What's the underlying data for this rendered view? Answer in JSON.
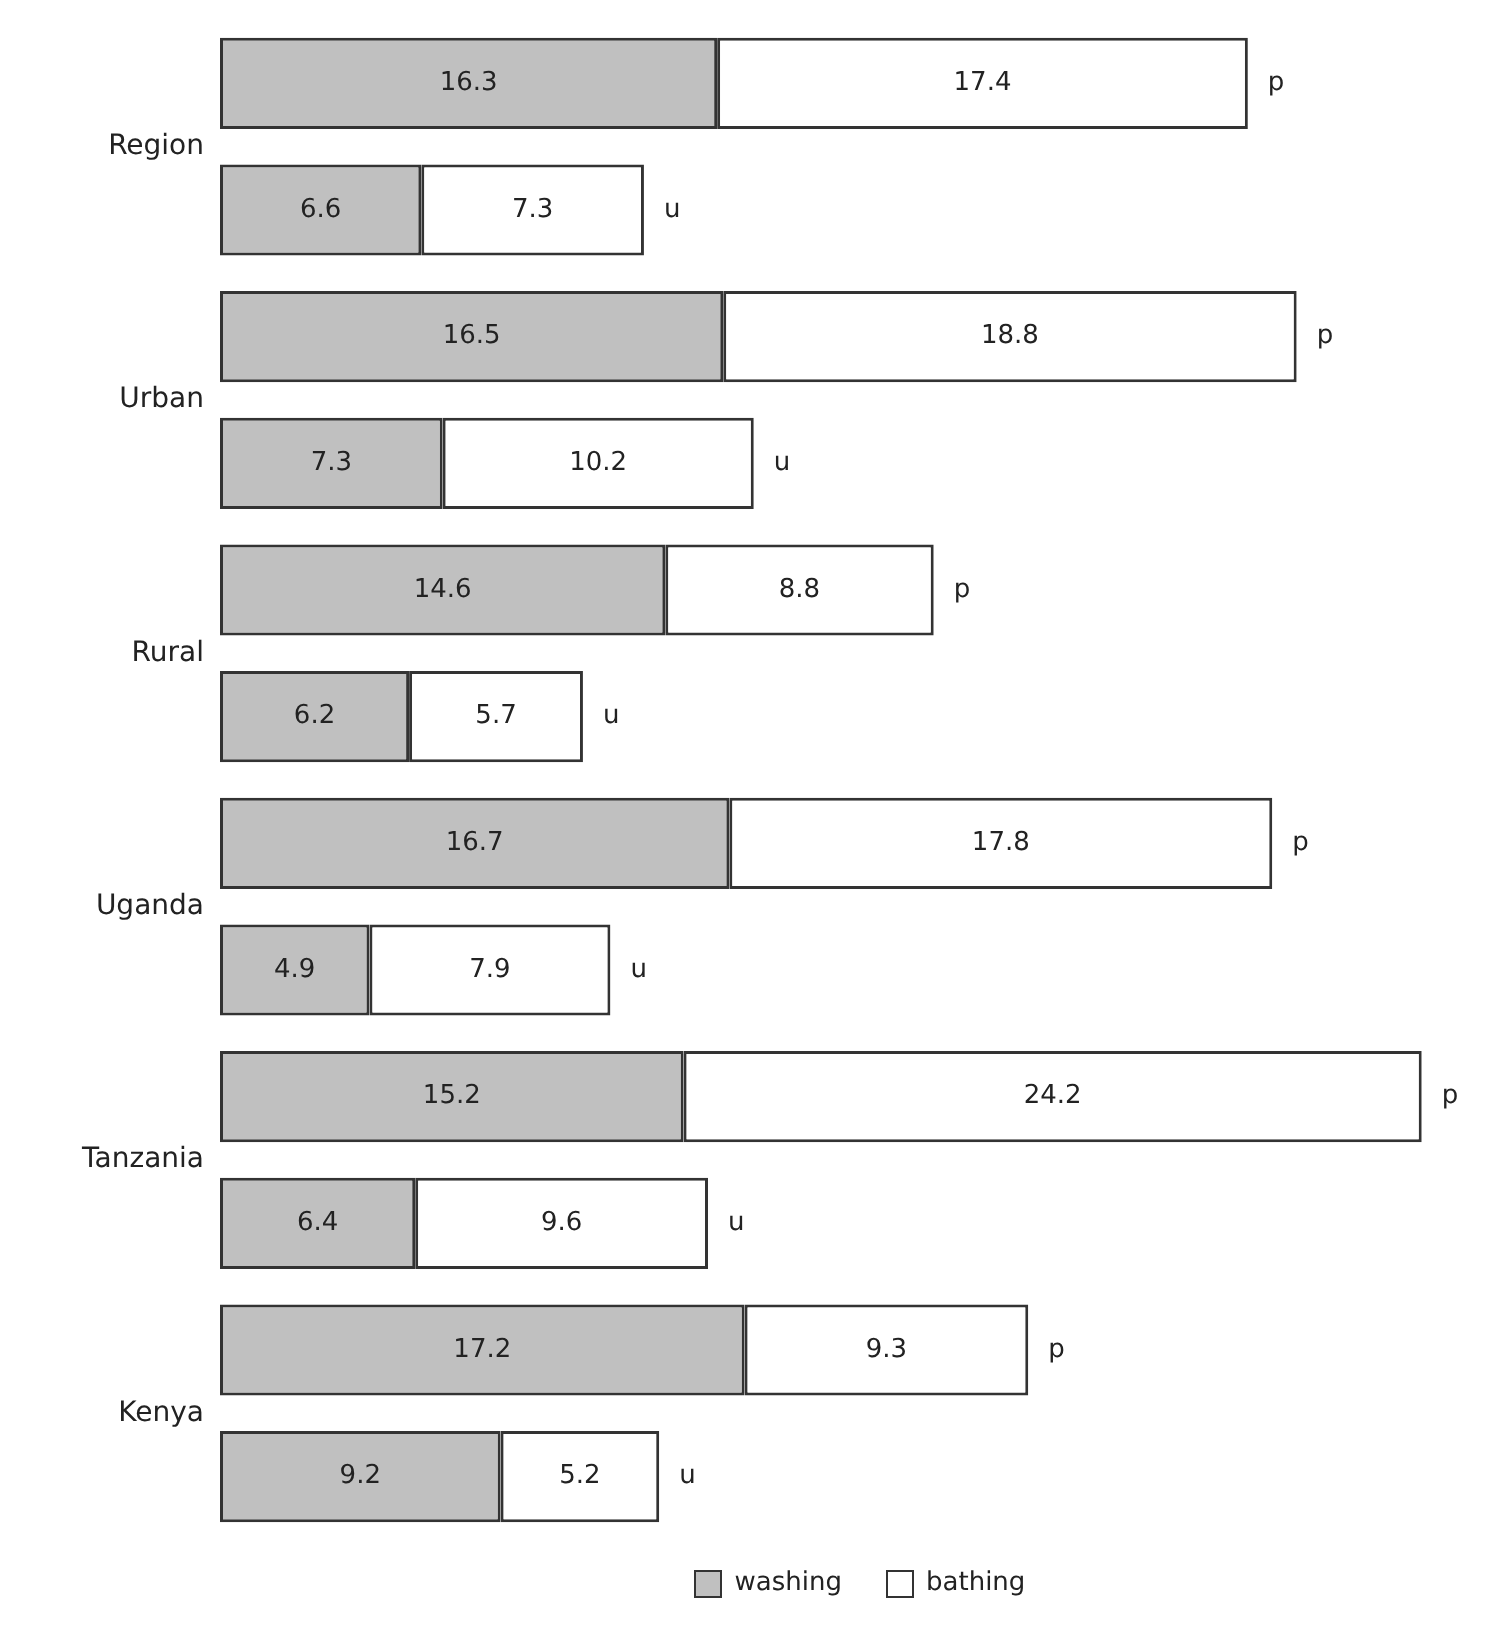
{
  "chart_data": {
    "type": "bar",
    "orientation": "horizontal",
    "stacked": true,
    "data_labels": true,
    "legend": "bottom",
    "categories": [
      "p",
      "u",
      "p",
      "u",
      "p",
      "u",
      "p",
      "u",
      "p",
      "u",
      "p",
      "u"
    ],
    "series": [
      {
        "name": "washing",
        "color": "#c0c0c0",
        "values": [
          16.3,
          6.6,
          16.5,
          7.3,
          14.6,
          6.2,
          16.7,
          4.9,
          15.2,
          6.4,
          17.2,
          9.2
        ]
      },
      {
        "name": "bathing",
        "color": "#ffffff",
        "values": [
          17.4,
          7.3,
          18.8,
          10.2,
          8.8,
          5.7,
          17.8,
          7.9,
          24.2,
          9.6,
          9.3,
          5.2
        ]
      }
    ],
    "annotations": [
      "Region",
      "Urban",
      "Rural",
      "Uganda",
      "Tanzania",
      "Kenya"
    ]
  }
}
